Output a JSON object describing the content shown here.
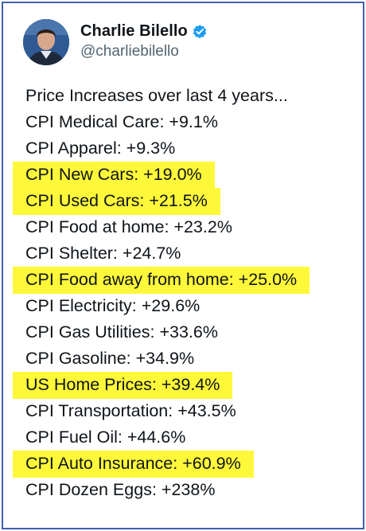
{
  "author": {
    "name": "Charlie Bilello",
    "handle": "@charliebilello",
    "verified": true,
    "verified_icon": "verified-badge-icon",
    "verified_color": "#1d9bf0"
  },
  "tweet": {
    "lines": [
      {
        "text": "Price Increases over last 4 years...",
        "highlighted": false
      },
      {
        "text": "CPI Medical Care: +9.1%",
        "highlighted": false
      },
      {
        "text": "CPI Apparel: +9.3%",
        "highlighted": false
      },
      {
        "text": "CPI New Cars: +19.0%",
        "highlighted": true
      },
      {
        "text": "CPI Used Cars: +21.5%",
        "highlighted": true
      },
      {
        "text": "CPI Food at home: +23.2%",
        "highlighted": false
      },
      {
        "text": "CPI Shelter: +24.7%",
        "highlighted": false
      },
      {
        "text": "CPI Food away from home: +25.0%",
        "highlighted": true
      },
      {
        "text": "CPI Electricity: +29.6%",
        "highlighted": false
      },
      {
        "text": "CPI Gas Utilities: +33.6%",
        "highlighted": false
      },
      {
        "text": "CPI Gasoline: +34.9%",
        "highlighted": false
      },
      {
        "text": "US Home Prices: +39.4%",
        "highlighted": true
      },
      {
        "text": "CPI Transportation: +43.5%",
        "highlighted": false
      },
      {
        "text": "CPI Fuel Oil: +44.6%",
        "highlighted": false
      },
      {
        "text": "CPI Auto Insurance: +60.9%",
        "highlighted": true
      },
      {
        "text": "CPI Dozen Eggs: +238%",
        "highlighted": false
      }
    ]
  },
  "colors": {
    "highlight": "#fdf83a",
    "border": "#3f5fae",
    "handle": "#536471",
    "text": "#0f1419"
  }
}
